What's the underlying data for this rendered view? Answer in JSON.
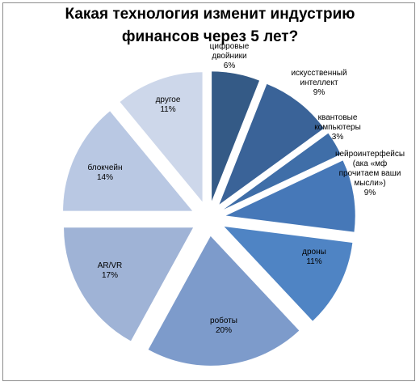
{
  "chart_data": {
    "type": "pie",
    "title_lines": [
      "Какая технология изменит индустрию",
      "финансов через 5 лет?"
    ],
    "slices": [
      {
        "label_lines": [
          "цифровые",
          "двойники"
        ],
        "value": 6,
        "value_label": "6%",
        "color": "#345a86"
      },
      {
        "label_lines": [
          "искусственный",
          "интеллект"
        ],
        "value": 9,
        "value_label": "9%",
        "color": "#3a6398"
      },
      {
        "label_lines": [
          "квантовые",
          "компьютеры"
        ],
        "value": 3,
        "value_label": "3%",
        "color": "#3f6ea8"
      },
      {
        "label_lines": [
          "нейроинтерфейсы",
          "(ака «мф",
          "прочитаем ваши",
          "мысли»)"
        ],
        "value": 9,
        "value_label": "9%",
        "color": "#4678b8"
      },
      {
        "label_lines": [
          "дроны"
        ],
        "value": 11,
        "value_label": "11%",
        "color": "#4f84c4"
      },
      {
        "label_lines": [
          "роботы"
        ],
        "value": 20,
        "value_label": "20%",
        "color": "#7d9bcb"
      },
      {
        "label_lines": [
          "AR/VR"
        ],
        "value": 17,
        "value_label": "17%",
        "color": "#9fb3d6"
      },
      {
        "label_lines": [
          "блокчейн"
        ],
        "value": 14,
        "value_label": "14%",
        "color": "#b9c8e3"
      },
      {
        "label_lines": [
          "другое"
        ],
        "value": 11,
        "value_label": "11%",
        "color": "#cdd7ea"
      }
    ]
  }
}
